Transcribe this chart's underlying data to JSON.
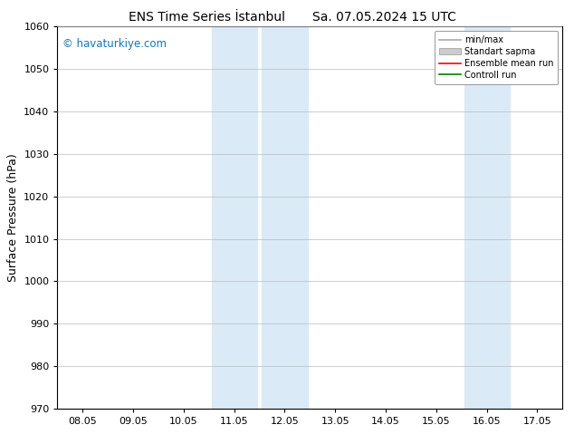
{
  "title": "ENS Time Series İstanbul",
  "title2": "Sa. 07.05.2024 15 UTC",
  "ylabel": "Surface Pressure (hPa)",
  "ylim": [
    970,
    1060
  ],
  "yticks": [
    970,
    980,
    990,
    1000,
    1010,
    1020,
    1030,
    1040,
    1050,
    1060
  ],
  "xtick_labels": [
    "08.05",
    "09.05",
    "10.05",
    "11.05",
    "12.05",
    "13.05",
    "14.05",
    "15.05",
    "16.05",
    "17.05"
  ],
  "xtick_positions": [
    0,
    1,
    2,
    3,
    4,
    5,
    6,
    7,
    8,
    9
  ],
  "xlim": [
    -0.5,
    9.5
  ],
  "shaded_regions": [
    {
      "xmin": 2.55,
      "xmax": 3.45,
      "color": "#daeaf7"
    },
    {
      "xmin": 3.55,
      "xmax": 4.45,
      "color": "#daeaf7"
    },
    {
      "xmin": 7.55,
      "xmax": 8.45,
      "color": "#daeaf7"
    }
  ],
  "watermark": "© havaturkiye.com",
  "watermark_color": "#1177bb",
  "legend_entries": [
    {
      "label": "min/max",
      "color": "#aaaaaa",
      "lw": 1.2,
      "ls": "-",
      "type": "line"
    },
    {
      "label": "Standart sapma",
      "color": "#cccccc",
      "lw": 8,
      "ls": "-",
      "type": "patch"
    },
    {
      "label": "Ensemble mean run",
      "color": "red",
      "lw": 1.2,
      "ls": "-",
      "type": "line"
    },
    {
      "label": "Controll run",
      "color": "green",
      "lw": 1.2,
      "ls": "-",
      "type": "line"
    }
  ],
  "bg_color": "#ffffff",
  "grid_color": "#bbbbbb",
  "title_fontsize": 10,
  "ylabel_fontsize": 9,
  "tick_fontsize": 8
}
